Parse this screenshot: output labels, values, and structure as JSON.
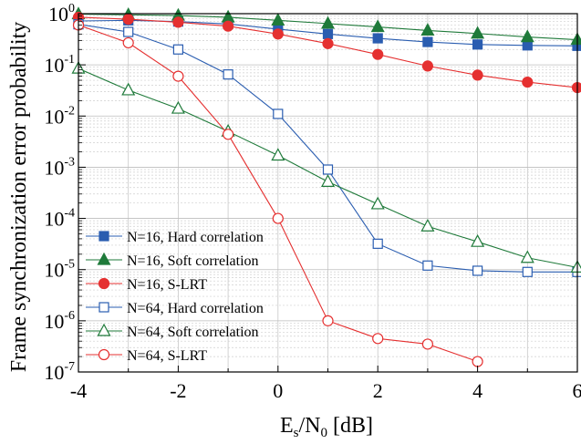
{
  "chart_data": {
    "type": "line",
    "xlabel": "E",
    "xlabel_sub1": "s",
    "xlabel_mid": "/N",
    "xlabel_sub2": "0",
    "xlabel_unit": " [dB]",
    "ylabel": "Frame synchronization error probability",
    "xlim": [
      -4,
      6
    ],
    "ylim": [
      1e-07,
      1
    ],
    "yscale": "log",
    "xticks": [
      -4,
      -2,
      0,
      2,
      4,
      6
    ],
    "xtick_labels": [
      "-4",
      "-2",
      "0",
      "2",
      "4",
      "6"
    ],
    "yticks": [
      {
        "base": "10",
        "exp": "-7",
        "value": 1e-07
      },
      {
        "base": "10",
        "exp": "-6",
        "value": 1e-06
      },
      {
        "base": "10",
        "exp": "-5",
        "value": 1e-05
      },
      {
        "base": "10",
        "exp": "-4",
        "value": 0.0001
      },
      {
        "base": "10",
        "exp": "-3",
        "value": 0.001
      },
      {
        "base": "10",
        "exp": "-2",
        "value": 0.01
      },
      {
        "base": "10",
        "exp": "-1",
        "value": 0.1
      },
      {
        "base": "10",
        "exp": "0",
        "value": 1
      }
    ],
    "grid": true,
    "legend_position": "lower-left",
    "series": [
      {
        "name": "N=16, Hard correlation",
        "color": "#2a5db0",
        "marker": "square",
        "filled": true,
        "x": [
          -4,
          -3,
          -2,
          -1,
          0,
          1,
          2,
          3,
          4,
          5,
          6
        ],
        "y": [
          0.72,
          0.74,
          0.7,
          0.63,
          0.5,
          0.4,
          0.33,
          0.28,
          0.25,
          0.24,
          0.235
        ]
      },
      {
        "name": "N=16, Soft correlation",
        "color": "#1f7a3a",
        "marker": "triangle",
        "filled": true,
        "x": [
          -4,
          -3,
          -2,
          -1,
          0,
          1,
          2,
          3,
          4,
          5,
          6
        ],
        "y": [
          0.98,
          0.95,
          0.92,
          0.85,
          0.74,
          0.64,
          0.55,
          0.47,
          0.41,
          0.35,
          0.31
        ]
      },
      {
        "name": "N=16, S-LRT",
        "color": "#e53030",
        "marker": "circle",
        "filled": true,
        "x": [
          -4,
          -3,
          -2,
          -1,
          0,
          1,
          2,
          3,
          4,
          5,
          6
        ],
        "y": [
          0.85,
          0.78,
          0.68,
          0.57,
          0.4,
          0.26,
          0.16,
          0.095,
          0.063,
          0.046,
          0.036
        ]
      },
      {
        "name": "N=64, Hard correlation",
        "color": "#2a5db0",
        "marker": "square",
        "filled": false,
        "x": [
          -4,
          -3,
          -2,
          -1,
          0,
          1,
          2,
          3,
          4,
          5,
          6
        ],
        "y": [
          0.62,
          0.44,
          0.2,
          0.065,
          0.011,
          0.0009,
          3.2e-05,
          1.2e-05,
          9.5e-06,
          9e-06,
          9e-06
        ]
      },
      {
        "name": "N=64, Soft correlation",
        "color": "#1f7a3a",
        "marker": "triangle",
        "filled": false,
        "x": [
          -4,
          -3,
          -2,
          -1,
          0,
          1,
          2,
          3,
          4,
          5,
          6
        ],
        "y": [
          0.085,
          0.032,
          0.014,
          0.005,
          0.0017,
          0.00052,
          0.00019,
          7e-05,
          3.5e-05,
          1.7e-05,
          1.1e-05
        ]
      },
      {
        "name": "N=64, S-LRT",
        "color": "#e53030",
        "marker": "circle",
        "filled": false,
        "x": [
          -4,
          -3,
          -2,
          -1,
          0,
          1,
          2,
          3,
          4
        ],
        "y": [
          0.6,
          0.27,
          0.06,
          0.0044,
          0.0001,
          1e-06,
          4.5e-07,
          3.5e-07,
          1.6e-07
        ]
      }
    ]
  }
}
